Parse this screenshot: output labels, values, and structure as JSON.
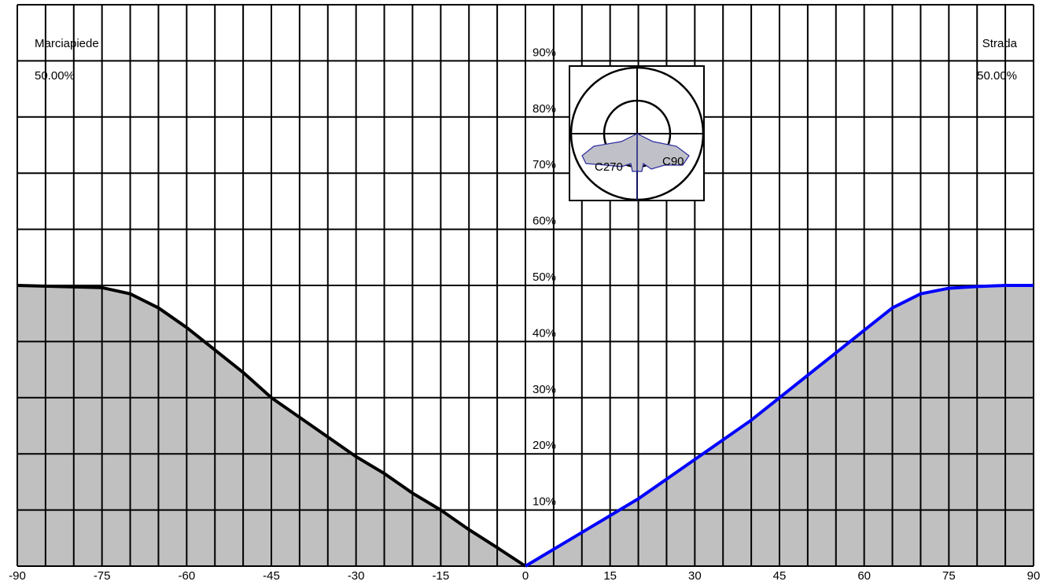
{
  "chart_data": {
    "type": "line",
    "xlim": [
      -90,
      90
    ],
    "ylim": [
      0,
      100
    ],
    "xticks": [
      -90,
      -75,
      -60,
      -45,
      -30,
      -15,
      0,
      15,
      30,
      45,
      60,
      75,
      90
    ],
    "xminorticks": [
      -85,
      -80,
      -70,
      -65,
      -55,
      -50,
      -40,
      -35,
      -25,
      -20,
      -10,
      -5,
      5,
      10,
      20,
      25,
      35,
      40,
      50,
      55,
      65,
      70,
      80,
      85
    ],
    "yticks": [
      {
        "value": 10,
        "label": "10%"
      },
      {
        "value": 20,
        "label": "20%"
      },
      {
        "value": 30,
        "label": "30%"
      },
      {
        "value": 40,
        "label": "40%"
      },
      {
        "value": 50,
        "label": "50%"
      },
      {
        "value": 60,
        "label": "60%"
      },
      {
        "value": 70,
        "label": "70%"
      },
      {
        "value": 80,
        "label": "80%"
      },
      {
        "value": 90,
        "label": "90%"
      }
    ],
    "grid": true,
    "fill_color": "#c0c0c0",
    "series": [
      {
        "name": "Marciapiede",
        "color": "#000000",
        "value_label": "50.00%",
        "x": [
          -90,
          -75,
          -70,
          -65,
          -60,
          -55,
          -50,
          -45,
          -40,
          -35,
          -30,
          -25,
          -20,
          -15,
          -10,
          -5,
          0
        ],
        "values": [
          50,
          49.6,
          48.5,
          46,
          42.5,
          38.5,
          34.5,
          30,
          26.5,
          23,
          19.5,
          16.5,
          13,
          10,
          6.5,
          3.3,
          0
        ]
      },
      {
        "name": "Strada",
        "color": "#0000ff",
        "value_label": "50.00%",
        "x": [
          0,
          5,
          10,
          15,
          20,
          25,
          30,
          35,
          40,
          45,
          50,
          55,
          60,
          65,
          70,
          75,
          80,
          85,
          90
        ],
        "values": [
          0,
          3,
          6,
          9,
          12,
          15.5,
          19,
          22.5,
          26,
          30,
          34,
          38,
          42,
          46,
          48.5,
          49.5,
          49.8,
          50,
          50
        ]
      }
    ],
    "inset": {
      "labels": [
        "C270",
        "C90"
      ]
    }
  }
}
